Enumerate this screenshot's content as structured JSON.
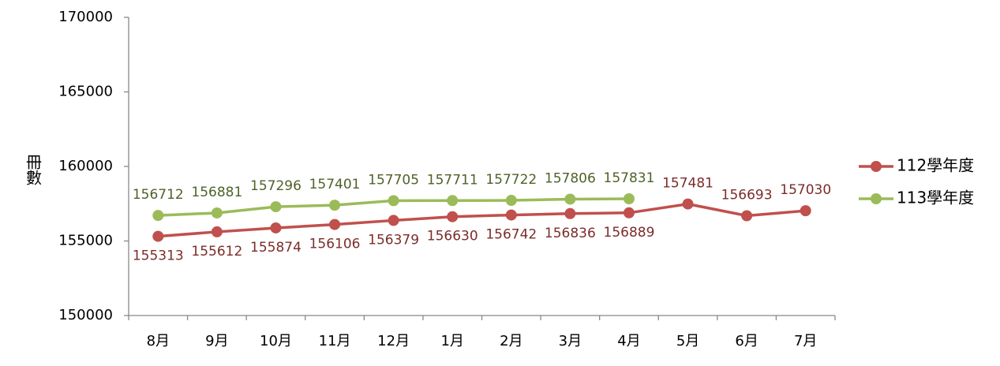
{
  "chart_data": {
    "type": "line",
    "y_label": "冊數",
    "categories": [
      "8月",
      "9月",
      "10月",
      "11月",
      "12月",
      "1月",
      "2月",
      "3月",
      "4月",
      "5月",
      "6月",
      "7月"
    ],
    "series": [
      {
        "name": "112學年度",
        "color": "#c0504d",
        "label_color": "#7b2c2a",
        "values": [
          155313,
          155612,
          155874,
          156106,
          156379,
          156630,
          156742,
          156836,
          156889,
          157481,
          156693,
          157030
        ]
      },
      {
        "name": "113學年度",
        "color": "#9bbb59",
        "label_color": "#4f6228",
        "values": [
          156712,
          156881,
          157296,
          157401,
          157705,
          157711,
          157722,
          157806,
          157831,
          null,
          null,
          null
        ]
      }
    ],
    "ylim": [
      150000,
      170000
    ],
    "yticks": [
      150000,
      155000,
      160000,
      165000,
      170000
    ],
    "grid": false,
    "legend": "right"
  }
}
